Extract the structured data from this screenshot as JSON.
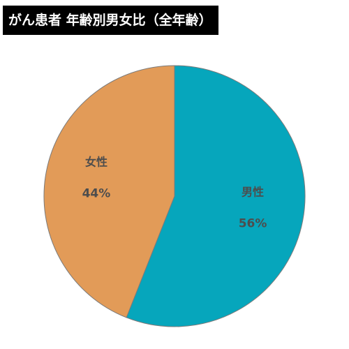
{
  "chart_data": {
    "type": "pie",
    "title": "がん患者 年齢別男女比（全年齢）",
    "slices": [
      {
        "label": "男性",
        "value": 56,
        "display": "56%",
        "color": "#06a6bc"
      },
      {
        "label": "女性",
        "value": 44,
        "display": "44%",
        "color": "#e29b58"
      }
    ],
    "start_angle_deg": 0,
    "direction": "clockwise",
    "stroke_color": "#7a7a7a"
  }
}
